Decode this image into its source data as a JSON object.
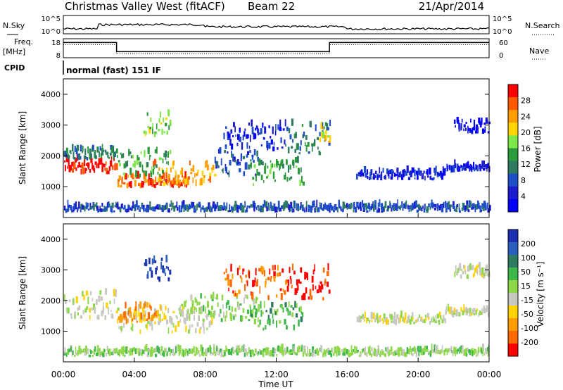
{
  "header": {
    "station": "Christmas Valley West (fitACF)",
    "beam": "Beam 22",
    "date": "21/Apr/2014"
  },
  "top_panel": {
    "left_label": "N.Sky",
    "right_label": "N.Search",
    "left_ticks": [
      "10^5",
      "10^0"
    ],
    "right_ticks": [
      "10^5",
      "10^0"
    ]
  },
  "freq_panel": {
    "left_label_1": "Freq.",
    "left_label_2": "[MHz]",
    "left_ticks": [
      "18",
      "8"
    ],
    "right_label": "Nave",
    "right_ticks": [
      "60",
      "0"
    ],
    "cpid_label": "CPID",
    "mode_text": "normal (fast) 151 IF",
    "freq_steps": [
      {
        "t": 0.0,
        "v": 16.0
      },
      {
        "t": 3.0,
        "v": 11.2
      },
      {
        "t": 15.0,
        "v": 16.0
      },
      {
        "t": 24.0,
        "v": 16.0
      }
    ]
  },
  "chart_data": [
    {
      "type": "heatmap",
      "name": "Power",
      "ylabel": "Slant Range [km]",
      "xlabel": "Time UT",
      "x_ticks": [
        "00:00",
        "04:00",
        "08:00",
        "12:00",
        "16:00",
        "20:00",
        "00:00"
      ],
      "y_ticks": [
        1000,
        2000,
        3000,
        4000
      ],
      "ylim": [
        0,
        4500
      ],
      "xlim": [
        0,
        24
      ],
      "colorbar_label": "Power [dB]",
      "colorbar_ticks": [
        "28",
        "24",
        "20",
        "16",
        "12",
        "8",
        "4"
      ],
      "colorbar_colors": [
        "#ff0000",
        "#ff5a00",
        "#ff9c00",
        "#ffd400",
        "#7ee84a",
        "#2a9a3a",
        "#2f7a62",
        "#1f4fc8",
        "#1b1bd0",
        "#0000ff"
      ],
      "regions": [
        {
          "t0": 0.0,
          "t1": 3.0,
          "r0": 1400,
          "r1": 1850,
          "c": 0
        },
        {
          "t0": 0.0,
          "t1": 3.0,
          "r0": 1850,
          "r1": 2200,
          "c": 6
        },
        {
          "t0": 3.0,
          "t1": 7.0,
          "r0": 950,
          "r1": 1300,
          "c": 1
        },
        {
          "t0": 5.0,
          "t1": 8.5,
          "r0": 1000,
          "r1": 1700,
          "c": 2
        },
        {
          "t0": 3.0,
          "t1": 6.0,
          "r0": 1300,
          "r1": 2100,
          "c": 5
        },
        {
          "t0": 4.5,
          "t1": 6.0,
          "r0": 2600,
          "r1": 3300,
          "c": 4
        },
        {
          "t0": 8.5,
          "t1": 11.0,
          "r0": 1300,
          "r1": 2100,
          "c": 7
        },
        {
          "t0": 9.0,
          "t1": 12.5,
          "r0": 2100,
          "r1": 3000,
          "c": 8
        },
        {
          "t0": 10.5,
          "t1": 13.5,
          "r0": 1000,
          "r1": 1800,
          "c": 5
        },
        {
          "t0": 12.5,
          "t1": 15.0,
          "r0": 2000,
          "r1": 3000,
          "c": 6
        },
        {
          "t0": 14.4,
          "t1": 15.0,
          "r0": 2400,
          "r1": 2900,
          "c": 3
        },
        {
          "t0": 16.5,
          "t1": 21.5,
          "r0": 1200,
          "r1": 1450,
          "c": 8
        },
        {
          "t0": 21.5,
          "t1": 24.0,
          "r0": 1450,
          "r1": 1650,
          "c": 8
        },
        {
          "t0": 22.0,
          "t1": 24.0,
          "r0": 2700,
          "r1": 3100,
          "c": 9
        },
        {
          "t0": 0.0,
          "t1": 24.0,
          "r0": 150,
          "r1": 350,
          "c": 7
        }
      ]
    },
    {
      "type": "heatmap",
      "name": "Velocity",
      "ylabel": "Slant Range [km]",
      "xlabel": "Time UT",
      "x_ticks": [
        "00:00",
        "04:00",
        "08:00",
        "12:00",
        "16:00",
        "20:00",
        "00:00"
      ],
      "y_ticks": [
        1000,
        2000,
        3000,
        4000
      ],
      "ylim": [
        0,
        4500
      ],
      "xlim": [
        0,
        24
      ],
      "colorbar_label": "Velocity [m s⁻¹]",
      "colorbar_ticks": [
        "200",
        "100",
        "50",
        "15",
        "-15",
        "-50",
        "-100",
        "-200"
      ],
      "colorbar_colors": [
        "#1b2fb0",
        "#2a5fc0",
        "#2f7a62",
        "#3cb84a",
        "#8fd84a",
        "#c8c8c0",
        "#ffd200",
        "#ff9c00",
        "#ff6a00",
        "#ff0000"
      ],
      "regions": [
        {
          "t0": 0.0,
          "t1": 3.0,
          "r0": 1350,
          "r1": 2200,
          "c": 5
        },
        {
          "t0": 3.0,
          "t1": 8.5,
          "r0": 900,
          "r1": 1700,
          "c": 5
        },
        {
          "t0": 3.0,
          "t1": 5.5,
          "r0": 1200,
          "r1": 1800,
          "c": 7
        },
        {
          "t0": 4.5,
          "t1": 6.0,
          "r0": 2600,
          "r1": 3300,
          "c": 0
        },
        {
          "t0": 6.5,
          "t1": 11.0,
          "r0": 1300,
          "r1": 2100,
          "c": 4
        },
        {
          "t0": 9.0,
          "t1": 12.5,
          "r0": 2000,
          "r1": 3000,
          "c": 8
        },
        {
          "t0": 10.5,
          "t1": 13.5,
          "r0": 1000,
          "r1": 1800,
          "c": 3
        },
        {
          "t0": 12.5,
          "t1": 15.0,
          "r0": 2000,
          "r1": 3000,
          "c": 9
        },
        {
          "t0": 16.5,
          "t1": 21.5,
          "r0": 1200,
          "r1": 1450,
          "c": 5
        },
        {
          "t0": 21.5,
          "t1": 24.0,
          "r0": 1450,
          "r1": 1650,
          "c": 5
        },
        {
          "t0": 22.0,
          "t1": 24.0,
          "r0": 2700,
          "r1": 3100,
          "c": 5
        },
        {
          "t0": 0.0,
          "t1": 24.0,
          "r0": 150,
          "r1": 350,
          "c": 4
        }
      ]
    }
  ]
}
